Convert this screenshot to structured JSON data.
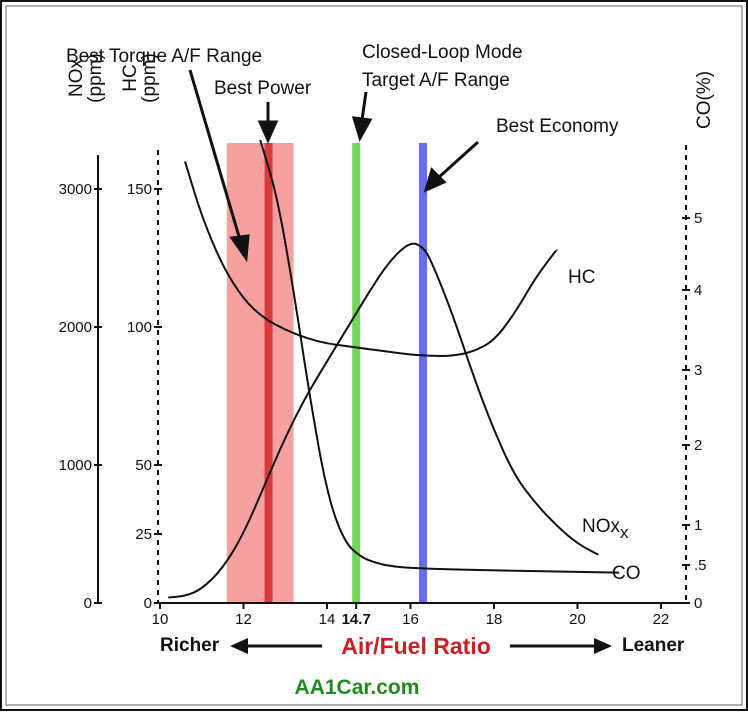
{
  "chart_data": {
    "type": "line",
    "xlabel": "Air/Fuel Ratio",
    "x_ticks": [
      "10",
      "12",
      "14",
      "14.7",
      "16",
      "18",
      "20",
      "22"
    ],
    "xlim": [
      10,
      22.6
    ],
    "direction_labels": {
      "left": "Richer",
      "right": "Leaner"
    },
    "watermark": "AA1Car.com",
    "axes": {
      "nox": {
        "label": "NOx",
        "sub": "x",
        "unit": "(ppm)",
        "ticks": [
          "0",
          "1000",
          "2000",
          "3000"
        ],
        "ylim": [
          0,
          3500
        ]
      },
      "hc": {
        "label": "HC",
        "unit": "(ppm)",
        "ticks": [
          "0",
          "25",
          "50",
          "100",
          "150"
        ],
        "ylim": [
          0,
          175
        ]
      },
      "co": {
        "label": "CO(%)",
        "ticks": [
          "0",
          ".5",
          "1",
          "2",
          "3",
          "4",
          "5"
        ]
      }
    },
    "annotations": [
      {
        "text": "Best Torque A/F Range"
      },
      {
        "text": "Best Power"
      },
      {
        "text": "Closed-Loop Mode"
      },
      {
        "text": "Target A/F Range"
      },
      {
        "text": "Best Economy"
      }
    ],
    "bands": [
      {
        "name": "Best Torque A/F Range",
        "x0": 11.6,
        "x1": 13.2,
        "color": "#f7a0a0"
      },
      {
        "name": "Best Power",
        "x": 12.6,
        "color": "#d93b3b"
      },
      {
        "name": "Closed-Loop Mode Target A/F Range",
        "x": 14.7,
        "color": "#72d65a"
      },
      {
        "name": "Best Economy",
        "x": 16.3,
        "color": "#6a6af2"
      }
    ],
    "series": [
      {
        "name": "HC",
        "axis": "hc",
        "x": [
          10.6,
          11,
          11.5,
          12,
          12.5,
          13,
          13.5,
          14,
          14.5,
          15,
          15.5,
          16,
          16.5,
          17,
          17.5,
          18,
          18.5,
          19,
          19.5
        ],
        "y": [
          160,
          140,
          122,
          110,
          103,
          99,
          96,
          94,
          93,
          92,
          91,
          90,
          89.5,
          89.5,
          91,
          95,
          105,
          118,
          128
        ]
      },
      {
        "name": "NOx",
        "sub": "x",
        "axis": "nox",
        "x": [
          10.2,
          10.6,
          11,
          11.5,
          12,
          12.5,
          13,
          13.5,
          14,
          14.5,
          15,
          15.5,
          16,
          16.3,
          16.5,
          17,
          17.5,
          18,
          18.5,
          19,
          19.5,
          20,
          20.5
        ],
        "y": [
          40,
          50,
          100,
          250,
          500,
          850,
          1200,
          1500,
          1750,
          2000,
          2250,
          2480,
          2620,
          2580,
          2480,
          2100,
          1650,
          1250,
          920,
          720,
          560,
          430,
          350
        ]
      },
      {
        "name": "CO",
        "axis": "co",
        "x": [
          12.4,
          12.8,
          13.2,
          13.6,
          14,
          14.4,
          14.8,
          15.2,
          15.6,
          16,
          17,
          18,
          19,
          20,
          21
        ],
        "y": [
          6,
          5.3,
          4.0,
          2.6,
          1.4,
          0.8,
          0.6,
          0.52,
          0.48,
          0.46,
          0.44,
          0.43,
          0.42,
          0.41,
          0.4
        ]
      }
    ]
  }
}
